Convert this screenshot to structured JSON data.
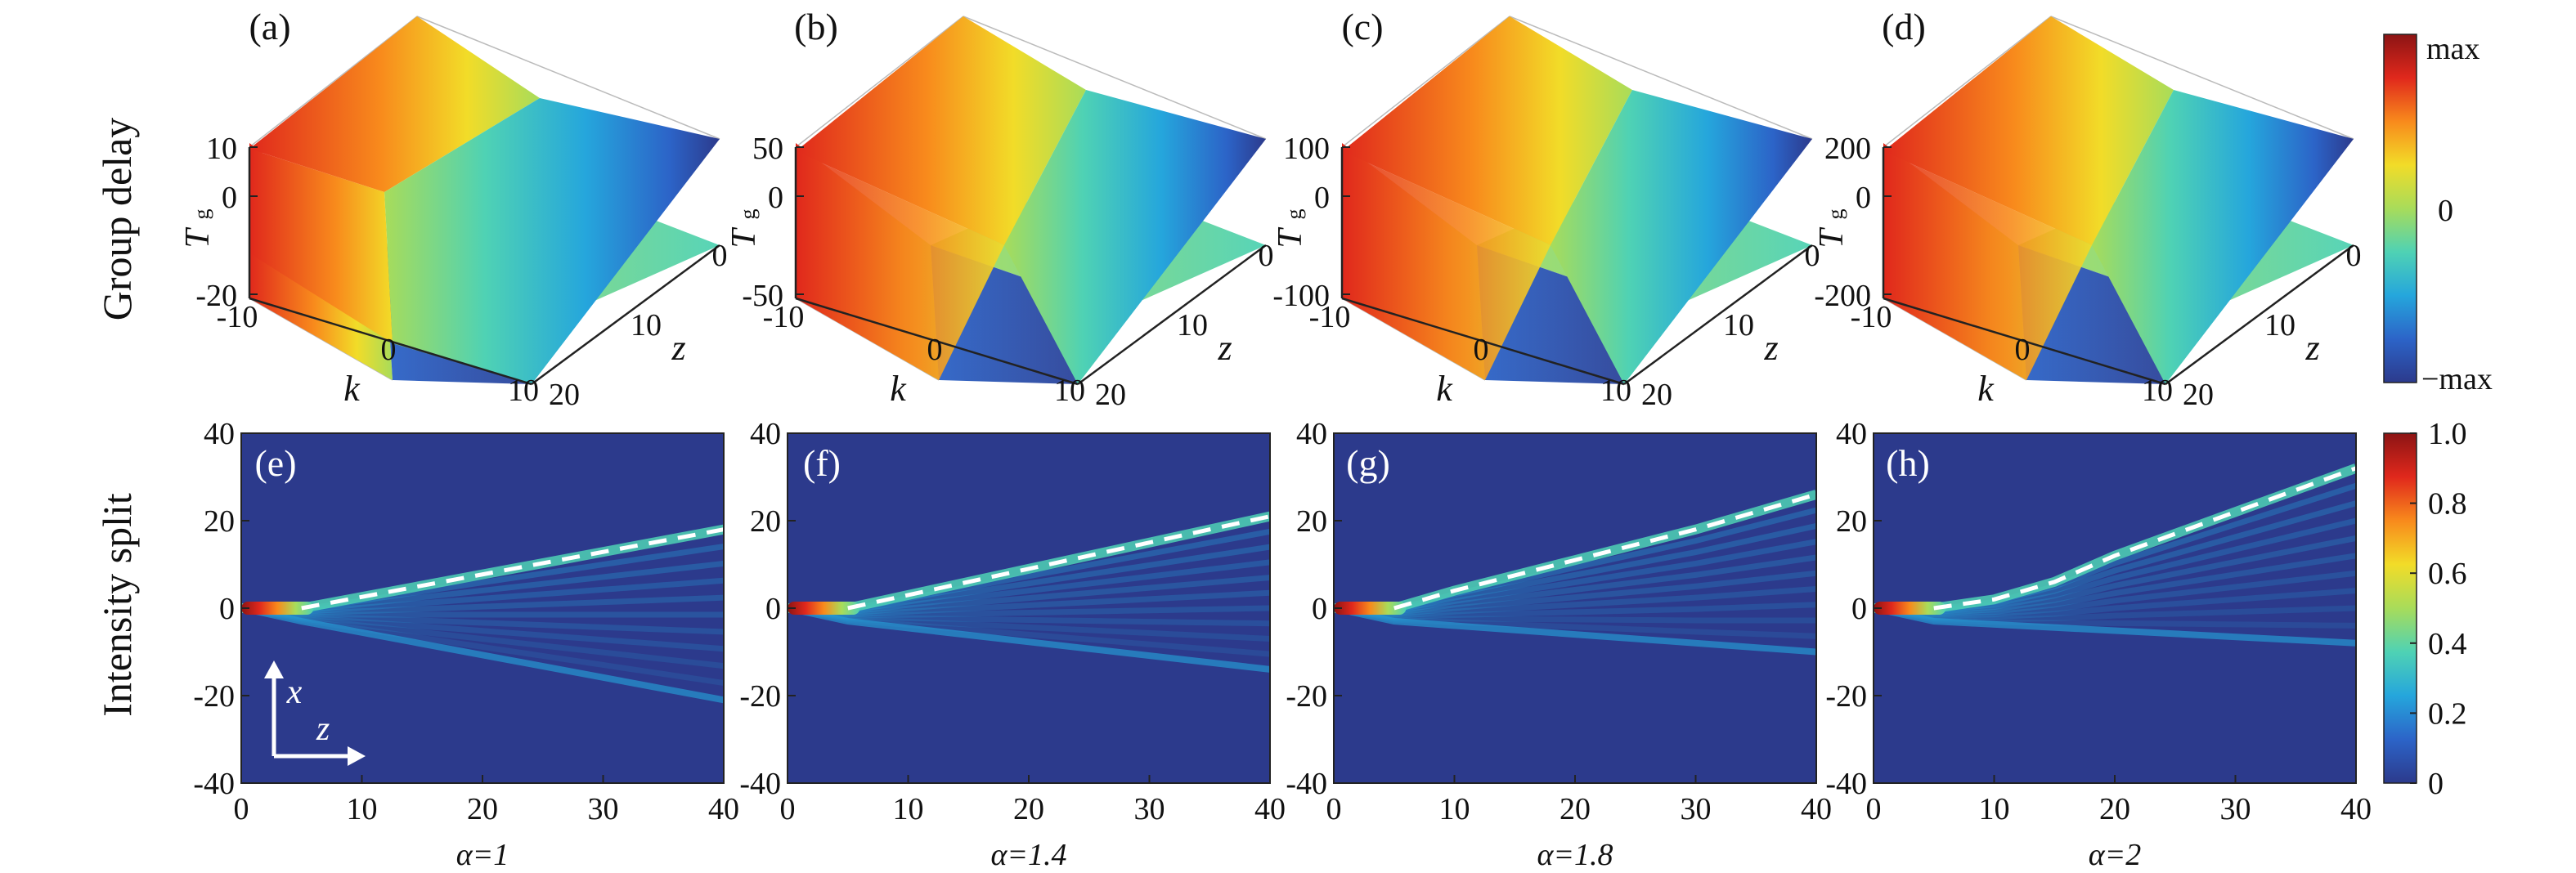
{
  "figure": {
    "row_labels": {
      "top": "Group delay",
      "bottom": "Intensity split"
    }
  },
  "colormap": [
    "#2c3a8c",
    "#2c64c8",
    "#25a6dc",
    "#4fd2b4",
    "#a8dc5a",
    "#f2dc28",
    "#f88a1c",
    "#e0281c",
    "#8c1414"
  ],
  "colors": {
    "dashed_line": "#ffffff",
    "background_field": "#2c3a8c"
  },
  "chart_data": [
    {
      "type": "surface",
      "panel": "(a)",
      "xlabel": "k",
      "ylabel": "z",
      "zlabel": "T",
      "zlabel_sub": "g",
      "k_ticks": [
        "-10",
        "0",
        "10"
      ],
      "z_ticks": [
        "0",
        "10",
        "20"
      ],
      "tg_ticks": [
        "10",
        "0",
        "-20"
      ],
      "k_range": [
        -10,
        10
      ],
      "z_range": [
        0,
        20
      ],
      "tg_range": [
        -20,
        10
      ]
    },
    {
      "type": "surface",
      "panel": "(b)",
      "xlabel": "k",
      "ylabel": "z",
      "zlabel": "T",
      "zlabel_sub": "g",
      "k_ticks": [
        "-10",
        "0",
        "10"
      ],
      "z_ticks": [
        "0",
        "10",
        "20"
      ],
      "tg_ticks": [
        "50",
        "0",
        "-50"
      ],
      "k_range": [
        -10,
        10
      ],
      "z_range": [
        0,
        20
      ],
      "tg_range": [
        -50,
        50
      ]
    },
    {
      "type": "surface",
      "panel": "(c)",
      "xlabel": "k",
      "ylabel": "z",
      "zlabel": "T",
      "zlabel_sub": "g",
      "k_ticks": [
        "-10",
        "0",
        "10"
      ],
      "z_ticks": [
        "0",
        "10",
        "20"
      ],
      "tg_ticks": [
        "100",
        "0",
        "-100"
      ],
      "k_range": [
        -10,
        10
      ],
      "z_range": [
        0,
        20
      ],
      "tg_range": [
        -100,
        100
      ]
    },
    {
      "type": "surface",
      "panel": "(d)",
      "xlabel": "k",
      "ylabel": "z",
      "zlabel": "T",
      "zlabel_sub": "g",
      "k_ticks": [
        "-10",
        "0",
        "10"
      ],
      "z_ticks": [
        "0",
        "10",
        "20"
      ],
      "tg_ticks": [
        "200",
        "0",
        "-200"
      ],
      "k_range": [
        -10,
        10
      ],
      "z_range": [
        0,
        20
      ],
      "tg_range": [
        -200,
        200
      ]
    },
    {
      "type": "heatmap",
      "panel": "(e)",
      "xlabel": "α=1",
      "x_ticks": [
        "0",
        "10",
        "20",
        "30",
        "40"
      ],
      "y_ticks": [
        "40",
        "20",
        "0",
        "-20",
        "-40"
      ],
      "xlim": [
        0,
        40
      ],
      "ylim": [
        -40,
        40
      ],
      "dashed_line": {
        "x": [
          5,
          40
        ],
        "y": [
          0,
          18
        ]
      },
      "main_beam": {
        "x": [
          0,
          5,
          40
        ],
        "y": [
          0,
          0,
          18
        ]
      },
      "lower_beam": {
        "x": [
          0,
          5,
          40
        ],
        "y": [
          0,
          -3,
          -21
        ]
      },
      "inset_axes": {
        "x": "x",
        "z": "z"
      }
    },
    {
      "type": "heatmap",
      "panel": "(f)",
      "xlabel": "α=1.4",
      "x_ticks": [
        "0",
        "10",
        "20",
        "30",
        "40"
      ],
      "y_ticks": [
        "40",
        "20",
        "0",
        "-20",
        "-40"
      ],
      "xlim": [
        0,
        40
      ],
      "ylim": [
        -40,
        40
      ],
      "dashed_line": {
        "x": [
          5,
          40
        ],
        "y": [
          0,
          21
        ]
      },
      "main_beam": {
        "x": [
          0,
          5,
          40
        ],
        "y": [
          0,
          0,
          21
        ]
      },
      "lower_beam": {
        "x": [
          0,
          5,
          40
        ],
        "y": [
          0,
          -3,
          -14
        ]
      }
    },
    {
      "type": "heatmap",
      "panel": "(g)",
      "xlabel": "α=1.8",
      "x_ticks": [
        "0",
        "10",
        "20",
        "30",
        "40"
      ],
      "y_ticks": [
        "40",
        "20",
        "0",
        "-20",
        "-40"
      ],
      "xlim": [
        0,
        40
      ],
      "ylim": [
        -40,
        40
      ],
      "dashed_line": {
        "x": [
          5,
          10,
          20,
          30,
          40
        ],
        "y": [
          0,
          4,
          11,
          18,
          26
        ]
      },
      "main_beam": {
        "x": [
          0,
          5,
          10,
          20,
          30,
          40
        ],
        "y": [
          0,
          0,
          4,
          11,
          18,
          26
        ]
      },
      "lower_beam": {
        "x": [
          0,
          5,
          40
        ],
        "y": [
          0,
          -3,
          -10
        ]
      }
    },
    {
      "type": "heatmap",
      "panel": "(h)",
      "xlabel": "α=2",
      "x_ticks": [
        "0",
        "10",
        "20",
        "30",
        "40"
      ],
      "y_ticks": [
        "40",
        "20",
        "0",
        "-20",
        "-40"
      ],
      "xlim": [
        0,
        40
      ],
      "ylim": [
        -40,
        40
      ],
      "dashed_line": {
        "x": [
          5,
          10,
          15,
          20,
          30,
          40
        ],
        "y": [
          0,
          2,
          6,
          12,
          22,
          32
        ]
      },
      "main_beam": {
        "x": [
          0,
          5,
          10,
          15,
          20,
          30,
          40
        ],
        "y": [
          0,
          0,
          2,
          6,
          12,
          22,
          32
        ]
      },
      "lower_beam": {
        "x": [
          0,
          5,
          40
        ],
        "y": [
          0,
          -3,
          -8
        ]
      }
    }
  ],
  "colorbars": {
    "top": {
      "labels": [
        "max",
        "0",
        "−max"
      ]
    },
    "bottom": {
      "labels": [
        "1.0",
        "0.8",
        "0.6",
        "0.4",
        "0.2",
        "0"
      ],
      "range": [
        0,
        1
      ]
    }
  }
}
